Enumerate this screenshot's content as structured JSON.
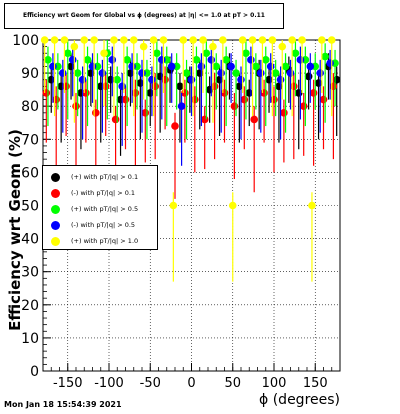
{
  "title": "Efficiency wrt Geom for Global vs ϕ (degrees) at |η| <= 1.0 at pT > 0.11",
  "timestamp": "Mon Jan 18 15:54:39 2021",
  "chart_data": {
    "type": "scatter",
    "title": "Efficiency wrt Geom for Global vs ϕ (degrees) at |η| <= 1.0 at pT > 0.11",
    "xlabel": "ϕ (degrees)",
    "ylabel": "Efficiency wrt Geom (%)",
    "xlim": [
      -180,
      180
    ],
    "ylim": [
      0,
      100
    ],
    "xticks": [
      -150,
      -100,
      -50,
      0,
      50,
      100,
      150
    ],
    "yticks": [
      0,
      10,
      20,
      30,
      40,
      50,
      60,
      70,
      80,
      90,
      100
    ],
    "grid": true,
    "legend_position": "left-middle",
    "series": [
      {
        "name": "(+) with pT/|q| > 0.1",
        "color": "#000000",
        "x": [
          -170,
          -158,
          -146,
          -134,
          -122,
          -110,
          -98,
          -86,
          -74,
          -62,
          -50,
          -38,
          -26,
          -14,
          -2,
          10,
          22,
          34,
          46,
          58,
          70,
          82,
          94,
          106,
          118,
          130,
          142,
          154,
          166,
          176
        ],
        "y": [
          88,
          86,
          92,
          84,
          90,
          86,
          88,
          82,
          90,
          87,
          84,
          89,
          91,
          86,
          88,
          90,
          85,
          88,
          92,
          86,
          84,
          90,
          88,
          86,
          91,
          84,
          89,
          87,
          92,
          88
        ]
      },
      {
        "name": "(-) with pT/|q| > 0.1",
        "color": "#ff0000",
        "x": [
          -176,
          -164,
          -152,
          -140,
          -128,
          -116,
          -104,
          -92,
          -80,
          -68,
          -56,
          -44,
          -32,
          -20,
          -8,
          4,
          16,
          28,
          40,
          52,
          64,
          76,
          88,
          100,
          112,
          124,
          136,
          148,
          160,
          172
        ],
        "y": [
          84,
          82,
          86,
          80,
          84,
          78,
          86,
          76,
          82,
          84,
          78,
          86,
          88,
          74,
          84,
          82,
          76,
          86,
          84,
          80,
          82,
          76,
          84,
          82,
          78,
          86,
          80,
          84,
          82,
          86
        ]
      },
      {
        "name": "(+) with pT/|q| > 0.5",
        "color": "#00ff00",
        "x": [
          -174,
          -162,
          -150,
          -138,
          -126,
          -114,
          -102,
          -90,
          -78,
          -66,
          -54,
          -42,
          -30,
          -18,
          -6,
          6,
          18,
          30,
          42,
          54,
          66,
          78,
          90,
          102,
          114,
          126,
          138,
          150,
          162,
          174
        ],
        "y": [
          94,
          92,
          96,
          90,
          94,
          92,
          96,
          88,
          94,
          92,
          90,
          96,
          94,
          92,
          90,
          94,
          96,
          92,
          94,
          90,
          96,
          92,
          94,
          90,
          92,
          96,
          94,
          92,
          95,
          93
        ]
      },
      {
        "name": "(-) with pT/|q| > 0.5",
        "color": "#0000ff",
        "x": [
          -168,
          -156,
          -144,
          -132,
          -120,
          -108,
          -96,
          -84,
          -72,
          -60,
          -48,
          -36,
          -24,
          -12,
          0,
          12,
          24,
          36,
          48,
          60,
          72,
          84,
          96,
          108,
          120,
          132,
          144,
          156,
          168
        ],
        "y": [
          92,
          90,
          94,
          88,
          92,
          90,
          94,
          86,
          92,
          90,
          88,
          94,
          92,
          80,
          88,
          92,
          94,
          90,
          92,
          88,
          94,
          90,
          92,
          88,
          90,
          94,
          92,
          90,
          93
        ]
      },
      {
        "name": "(+) with pT/|q| > 1.0",
        "color": "#ffff00",
        "x": [
          -178,
          -166,
          -154,
          -142,
          -130,
          -118,
          -106,
          -94,
          -82,
          -70,
          -58,
          -46,
          -34,
          -22,
          -10,
          2,
          14,
          26,
          38,
          50,
          62,
          74,
          86,
          98,
          110,
          122,
          134,
          146,
          158,
          170
        ],
        "y": [
          100,
          100,
          100,
          98,
          100,
          100,
          96,
          100,
          100,
          100,
          98,
          100,
          100,
          50,
          100,
          100,
          100,
          98,
          100,
          50,
          100,
          100,
          100,
          100,
          98,
          100,
          100,
          50,
          100,
          100
        ]
      }
    ]
  }
}
